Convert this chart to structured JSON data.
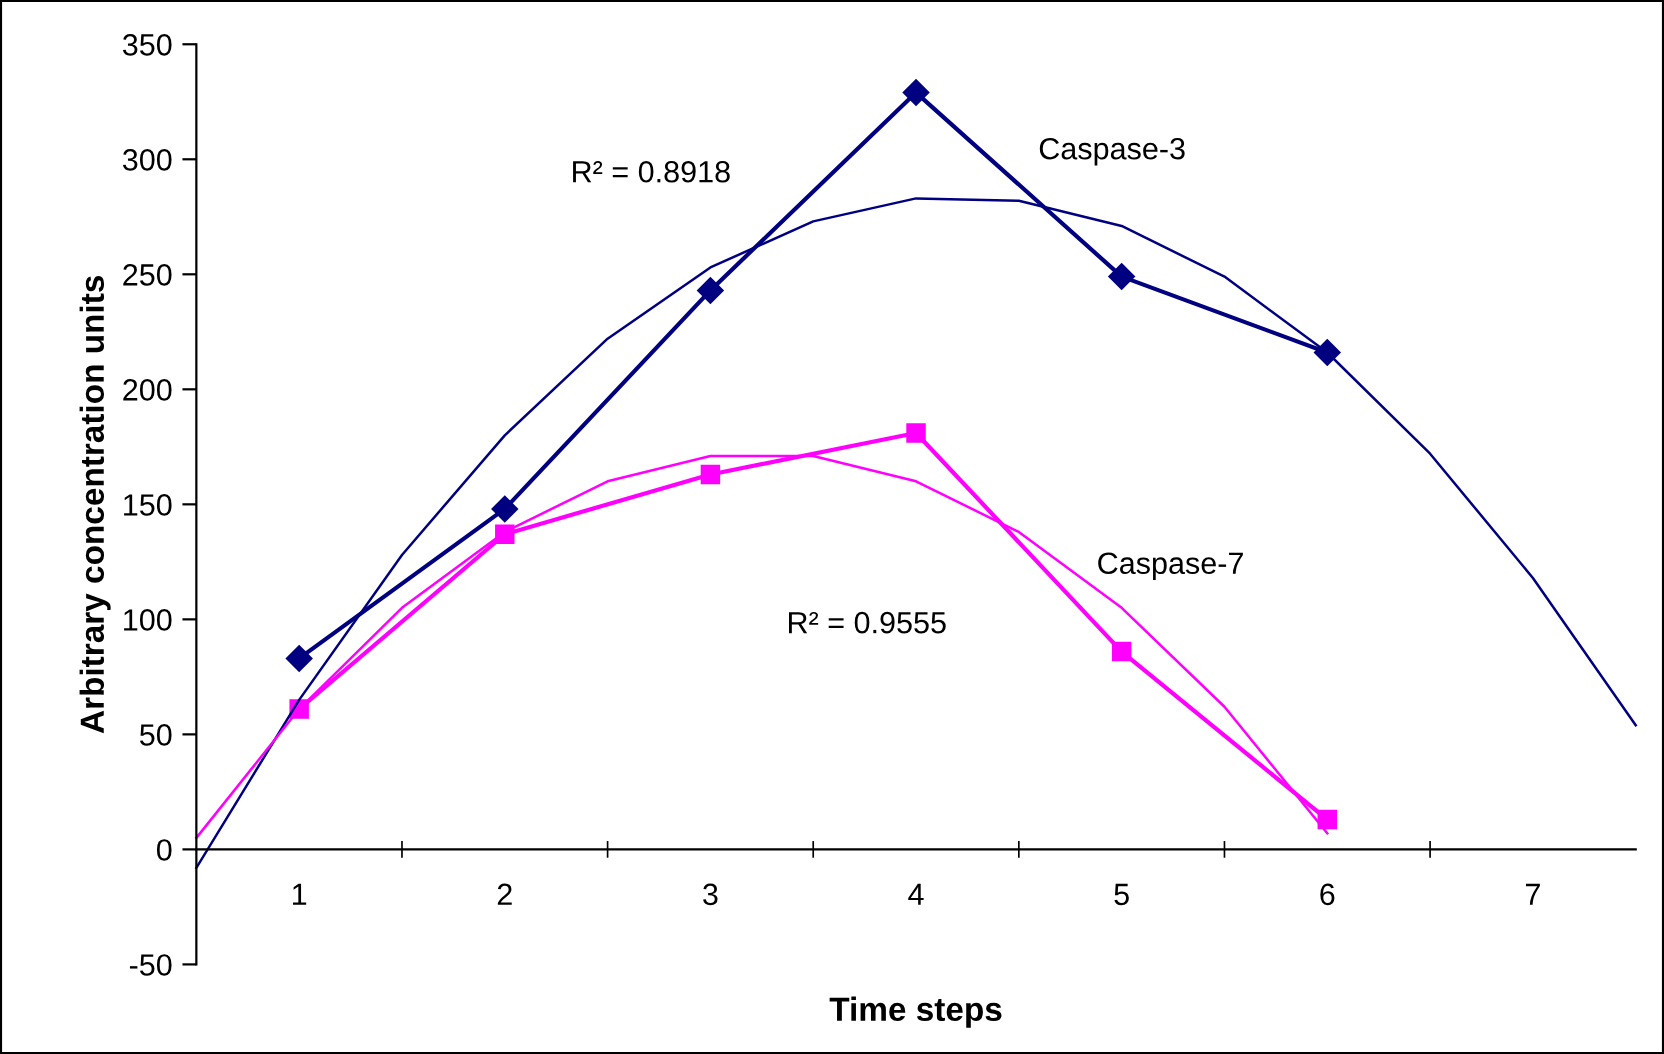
{
  "chart_data": {
    "type": "line",
    "xlabel": "Time steps",
    "ylabel": "Arbitrary concentration units",
    "xlim": [
      0.5,
      7.5
    ],
    "xticks": [
      1,
      2,
      3,
      4,
      5,
      6,
      7,
      {
        "value": 1.5,
        "label": null
      },
      {
        "value": 2.5,
        "label": null
      },
      {
        "value": 3.5,
        "label": null
      },
      {
        "value": 4.5,
        "label": null
      },
      {
        "value": 5.5,
        "label": null
      },
      {
        "value": 6.5,
        "label": null
      }
    ],
    "ylim": [
      -50,
      350
    ],
    "yticks": [
      -50,
      0,
      50,
      100,
      150,
      200,
      250,
      300,
      350
    ],
    "grid": false,
    "legend": false,
    "series": [
      {
        "name": "Caspase-3",
        "color": "#000080",
        "marker": "diamond",
        "x": [
          1,
          2,
          3,
          4,
          5,
          6
        ],
        "values": [
          83,
          148,
          243,
          329,
          249,
          216
        ]
      },
      {
        "name": "Caspase-7",
        "color": "#ff00ff",
        "marker": "square",
        "x": [
          1,
          2,
          3,
          4,
          5,
          6
        ],
        "values": [
          61,
          137,
          163,
          181,
          86,
          13
        ]
      },
      {
        "color": "#000080",
        "marker": "none",
        "x": [
          0.5,
          1,
          1.5,
          2,
          2.5,
          3,
          3.5,
          4,
          4.5,
          5,
          5.5,
          6,
          6.5,
          7,
          7.5
        ],
        "values": [
          -8,
          65,
          128,
          180,
          222,
          253,
          273,
          283,
          282,
          271,
          249,
          216,
          172,
          118,
          54
        ]
      },
      {
        "color": "#ff00ff",
        "marker": "none",
        "x": [
          0.5,
          1,
          1.5,
          2,
          2.5,
          3,
          3.5,
          4,
          4.5,
          5,
          5.5,
          6
        ],
        "values": [
          5,
          61,
          105,
          138,
          160,
          171,
          171,
          160,
          138,
          105,
          62,
          7
        ]
      }
    ],
    "annotations": [
      "R² = 0.8918",
      "R² = 0.9555"
    ]
  }
}
